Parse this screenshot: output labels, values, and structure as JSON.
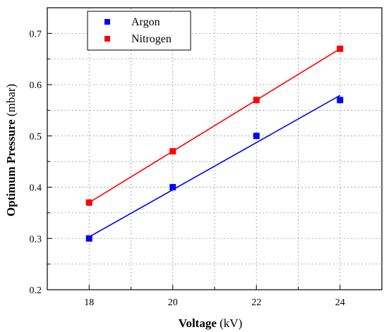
{
  "chart_data": {
    "type": "scatter",
    "xlabel_bold": "Voltage",
    "xlabel_unit": " (kV)",
    "ylabel_bold": "Optimum Pressure",
    "ylabel_unit": " (mbar)",
    "xlim": [
      17,
      25
    ],
    "ylim": [
      0.2,
      0.75
    ],
    "x_ticks": [
      18,
      20,
      22,
      24
    ],
    "y_ticks": [
      0.2,
      0.3,
      0.4,
      0.5,
      0.6,
      0.7
    ],
    "x_tick_labels": [
      "18",
      "20",
      "22",
      "24"
    ],
    "y_tick_labels": [
      "0.2",
      "0.3",
      "0.4",
      "0.5",
      "0.6",
      "0.7"
    ],
    "grid": true,
    "legend_position": "top-left",
    "series": [
      {
        "name": "Argon",
        "color": "#0000ff",
        "x": [
          18,
          20,
          22,
          24
        ],
        "y": [
          0.3,
          0.4,
          0.5,
          0.57
        ],
        "fit": [
          [
            18,
            0.303
          ],
          [
            24,
            0.579
          ]
        ]
      },
      {
        "name": "Nitrogen",
        "color": "#ff0000",
        "x": [
          18,
          20,
          22,
          24
        ],
        "y": [
          0.37,
          0.47,
          0.57,
          0.67
        ],
        "fit": [
          [
            18,
            0.37
          ],
          [
            24,
            0.67
          ]
        ]
      }
    ]
  }
}
